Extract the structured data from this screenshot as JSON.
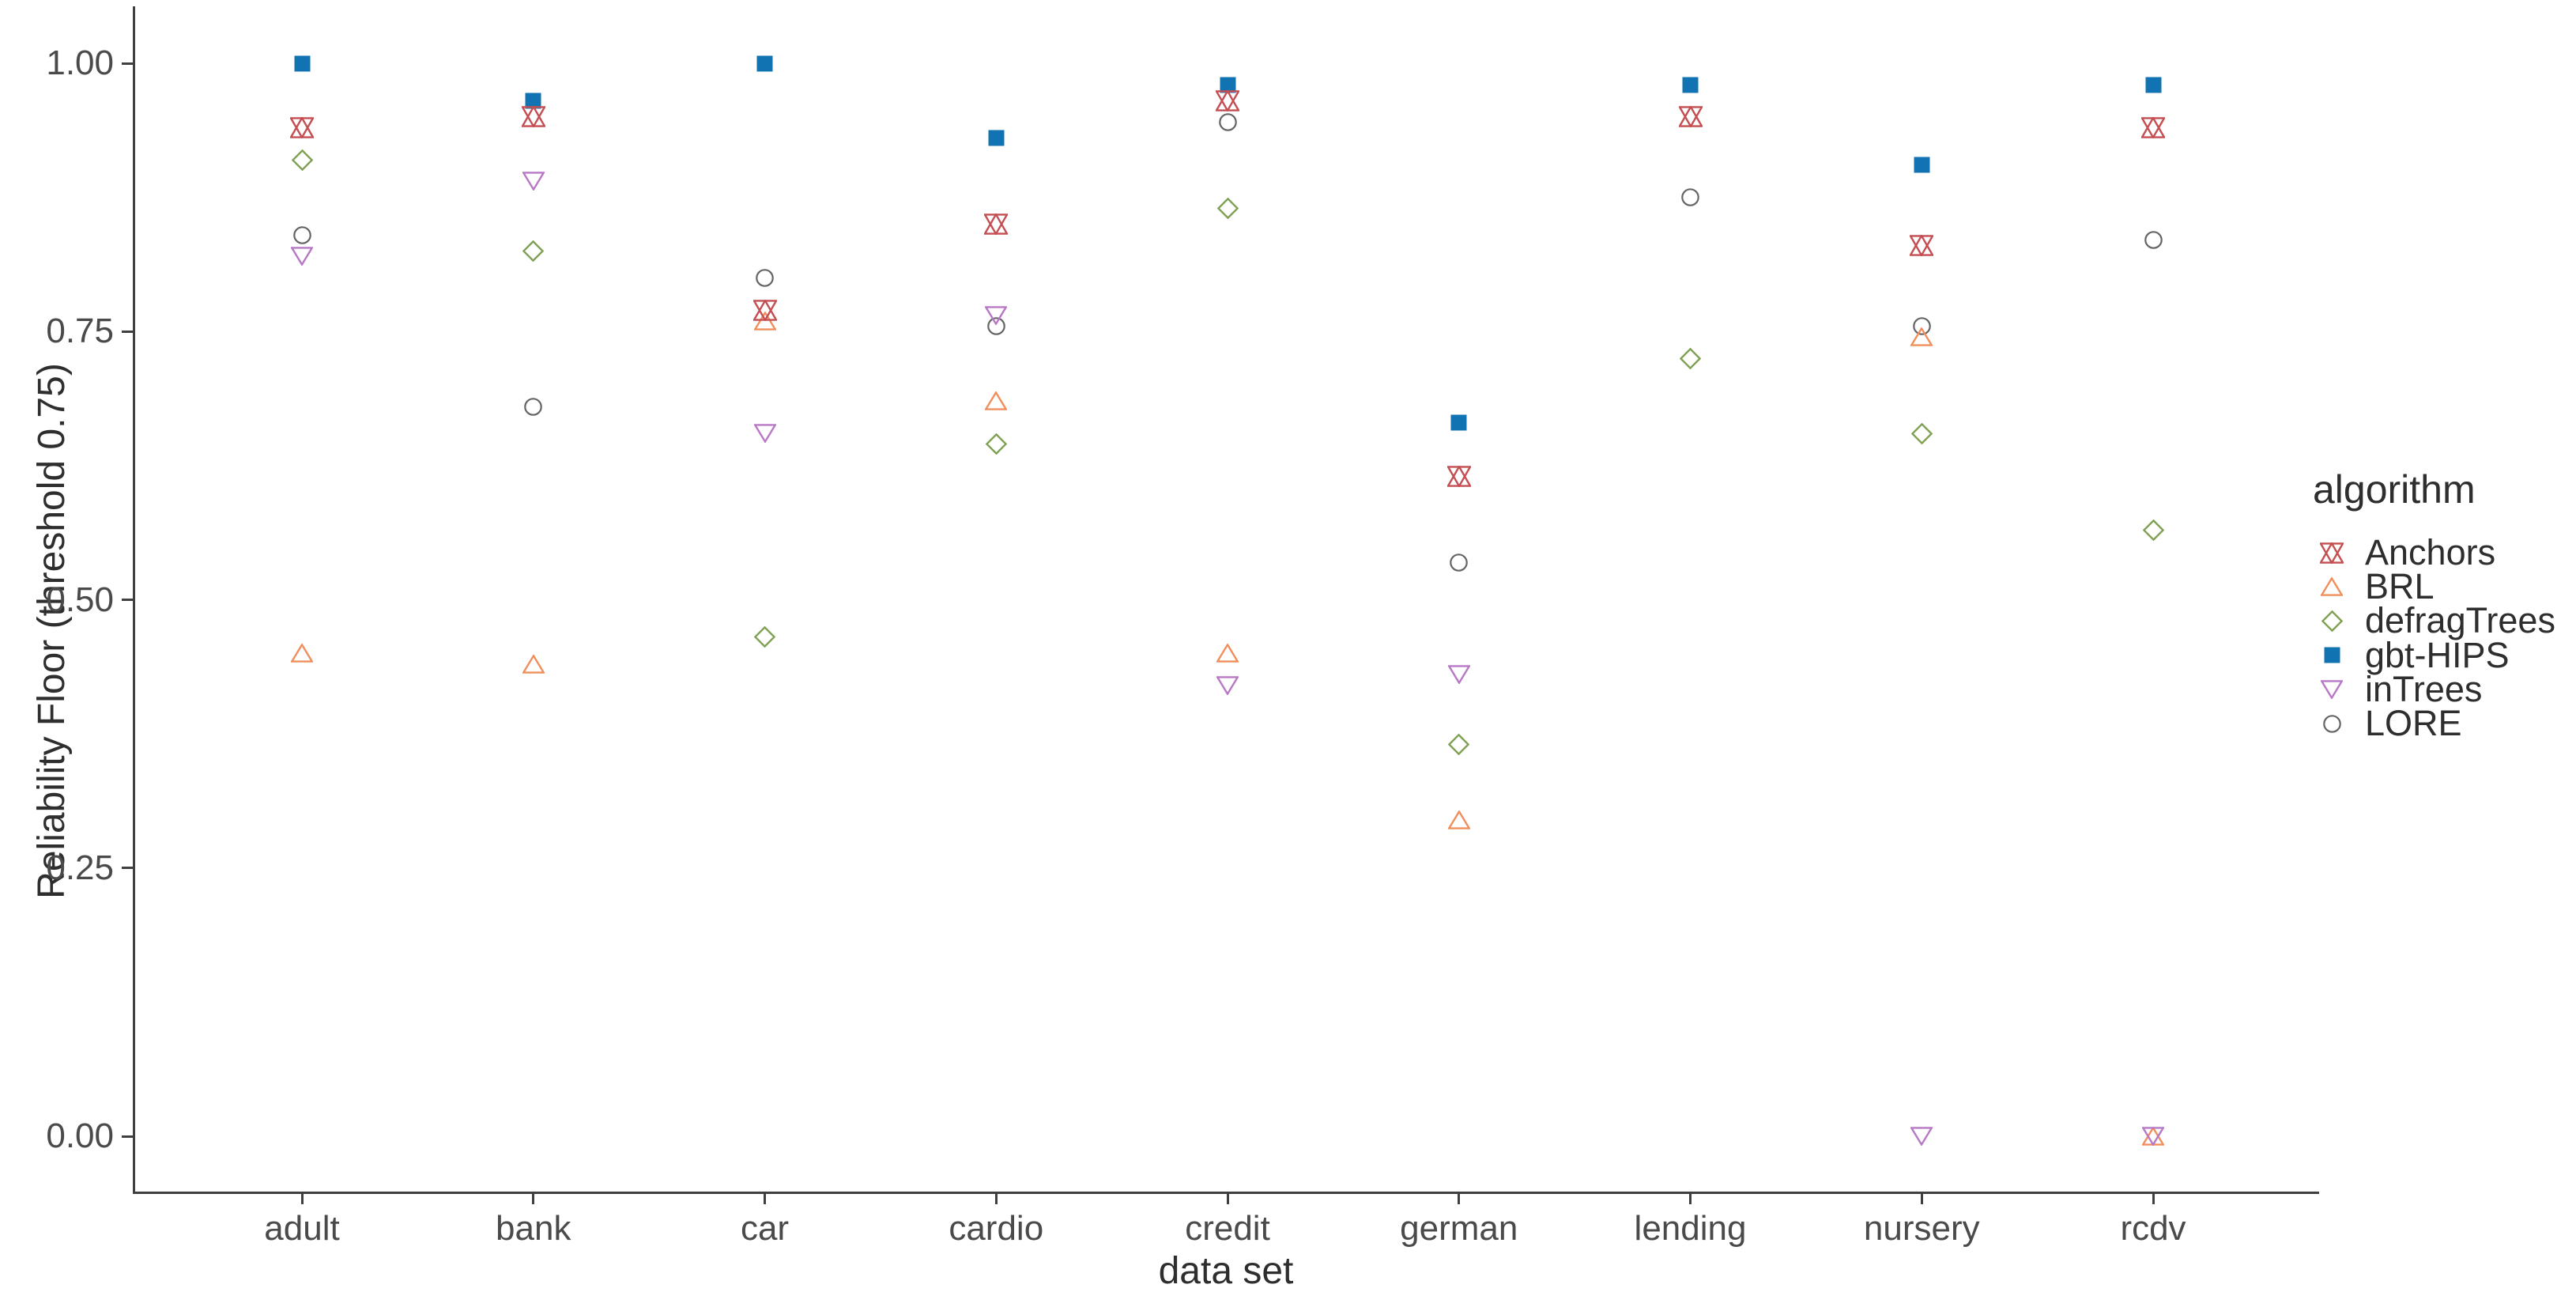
{
  "figure": {
    "background": "#ffffff",
    "axis_color": "#3f3f3f",
    "tick_label_color": "#4a4a4a",
    "title_color": "#2e2e2e"
  },
  "chart_data": {
    "type": "scatter",
    "title": "",
    "xlabel": "data set",
    "ylabel": "Reliability Floor (threshold 0.75)",
    "legend_title": "algorithm",
    "legend_position": "right",
    "grid": false,
    "ylim": [
      0.0,
      1.0
    ],
    "y_ticks": [
      1.0,
      0.75,
      0.5,
      0.25,
      0.0
    ],
    "y_tick_labels": [
      "1.00",
      "0.75",
      "0.50",
      "0.25",
      "0.00"
    ],
    "categories": [
      "adult",
      "bank",
      "car",
      "cardio",
      "credit",
      "german",
      "lending",
      "nursery",
      "rcdv"
    ],
    "series": [
      {
        "name": "Anchors",
        "shape": "hexagram",
        "color": "#C44E52",
        "filled": false,
        "values": [
          0.94,
          0.95,
          0.77,
          0.85,
          0.965,
          0.615,
          0.95,
          0.83,
          0.94
        ]
      },
      {
        "name": "BRL",
        "shape": "triangle-up",
        "color": "#F08F5C",
        "filled": false,
        "values": [
          0.45,
          0.44,
          0.76,
          0.685,
          0.45,
          0.295,
          null,
          0.745,
          0.0
        ]
      },
      {
        "name": "defragTrees",
        "shape": "diamond",
        "color": "#7FA053",
        "filled": false,
        "values": [
          0.91,
          0.825,
          0.465,
          0.645,
          0.865,
          0.365,
          0.725,
          0.655,
          0.565
        ]
      },
      {
        "name": "gbt-HIPS",
        "shape": "square-filled",
        "color": "#1273B2",
        "filled": true,
        "values": [
          1.0,
          0.965,
          1.0,
          0.93,
          0.98,
          0.665,
          0.98,
          0.905,
          0.98
        ]
      },
      {
        "name": "inTrees",
        "shape": "triangle-down",
        "color": "#B978C6",
        "filled": false,
        "values": [
          0.82,
          0.89,
          0.655,
          0.765,
          0.42,
          0.43,
          null,
          0.0,
          0.0
        ]
      },
      {
        "name": "LORE",
        "shape": "circle",
        "color": "#646464",
        "filled": false,
        "values": [
          0.84,
          0.68,
          0.8,
          0.755,
          0.945,
          0.535,
          0.875,
          0.755,
          0.835
        ]
      }
    ]
  }
}
